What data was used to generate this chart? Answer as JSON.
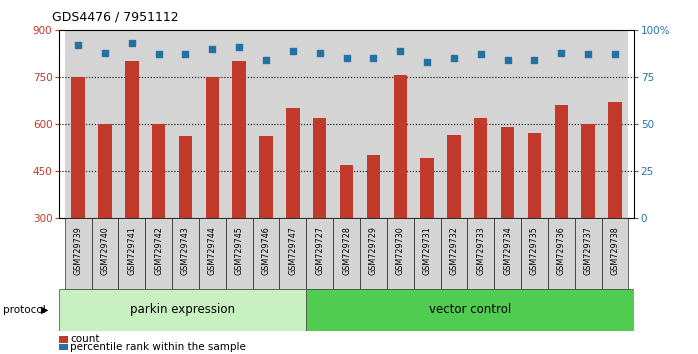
{
  "title": "GDS4476 / 7951112",
  "samples": [
    "GSM729739",
    "GSM729740",
    "GSM729741",
    "GSM729742",
    "GSM729743",
    "GSM729744",
    "GSM729745",
    "GSM729746",
    "GSM729747",
    "GSM729727",
    "GSM729728",
    "GSM729729",
    "GSM729730",
    "GSM729731",
    "GSM729732",
    "GSM729733",
    "GSM729734",
    "GSM729735",
    "GSM729736",
    "GSM729737",
    "GSM729738"
  ],
  "bar_values": [
    750,
    600,
    800,
    600,
    560,
    750,
    800,
    560,
    650,
    620,
    470,
    500,
    755,
    490,
    565,
    620,
    590,
    570,
    660,
    600,
    670
  ],
  "dot_values": [
    92,
    88,
    93,
    87,
    87,
    90,
    91,
    84,
    89,
    88,
    85,
    85,
    89,
    83,
    85,
    87,
    84,
    84,
    88,
    87,
    87
  ],
  "group_labels": [
    "parkin expression",
    "vector control"
  ],
  "group_sizes": [
    9,
    12
  ],
  "bar_color": "#c0392b",
  "dot_color": "#2471a3",
  "bar_base": 300,
  "ylim_left": [
    300,
    900
  ],
  "ylim_right": [
    0,
    100
  ],
  "yticks_left": [
    300,
    450,
    600,
    750,
    900
  ],
  "yticks_right": [
    0,
    25,
    50,
    75,
    100
  ],
  "right_tick_labels": [
    "0",
    "25",
    "50",
    "75",
    "100%"
  ],
  "hlines": [
    450,
    600,
    750
  ],
  "legend_count_label": "count",
  "legend_pct_label": "percentile rank within the sample",
  "protocol_label": "protocol",
  "parkin_color": "#c8f0c0",
  "vector_color": "#50cc50",
  "cell_bg": "#d4d4d4"
}
